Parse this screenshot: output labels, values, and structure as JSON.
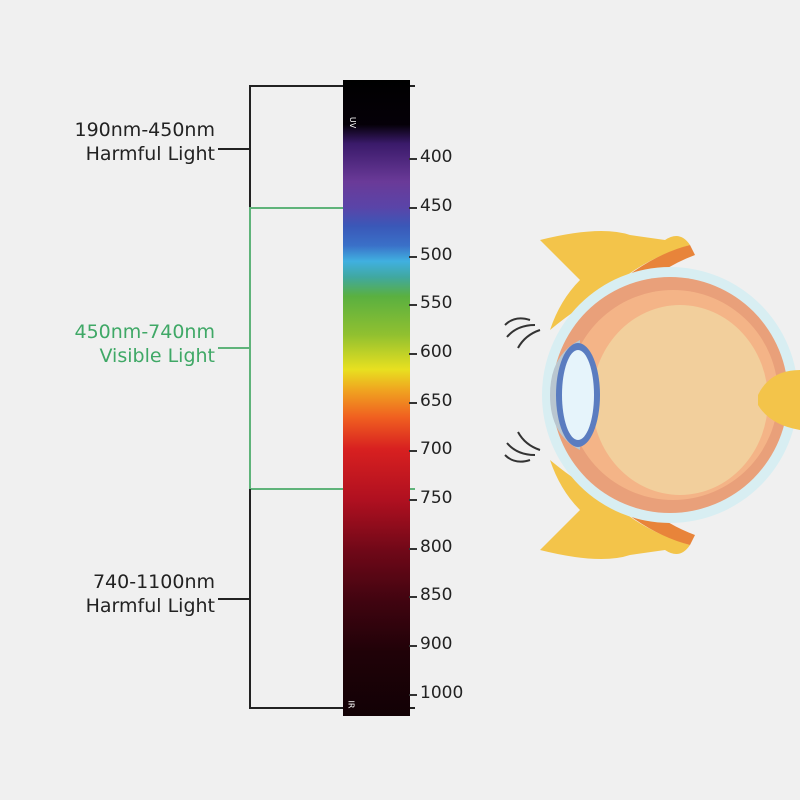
{
  "spectrum": {
    "top_marker": "UV",
    "bottom_marker": "IR",
    "ticks": [
      "400",
      "450",
      "500",
      "550",
      "600",
      "650",
      "700",
      "750",
      "800",
      "850",
      "900",
      "1000"
    ]
  },
  "ranges": [
    {
      "line1": "190nm-450nm",
      "line2": "Harmful Light",
      "color": "#222222"
    },
    {
      "line1": "450nm-740nm",
      "line2": "Visible Light",
      "color": "#3fa866"
    },
    {
      "line1": "740-1100nm",
      "line2": "Harmful Light",
      "color": "#222222"
    }
  ],
  "illustration": {
    "icon": "eye-cross-section-icon"
  }
}
